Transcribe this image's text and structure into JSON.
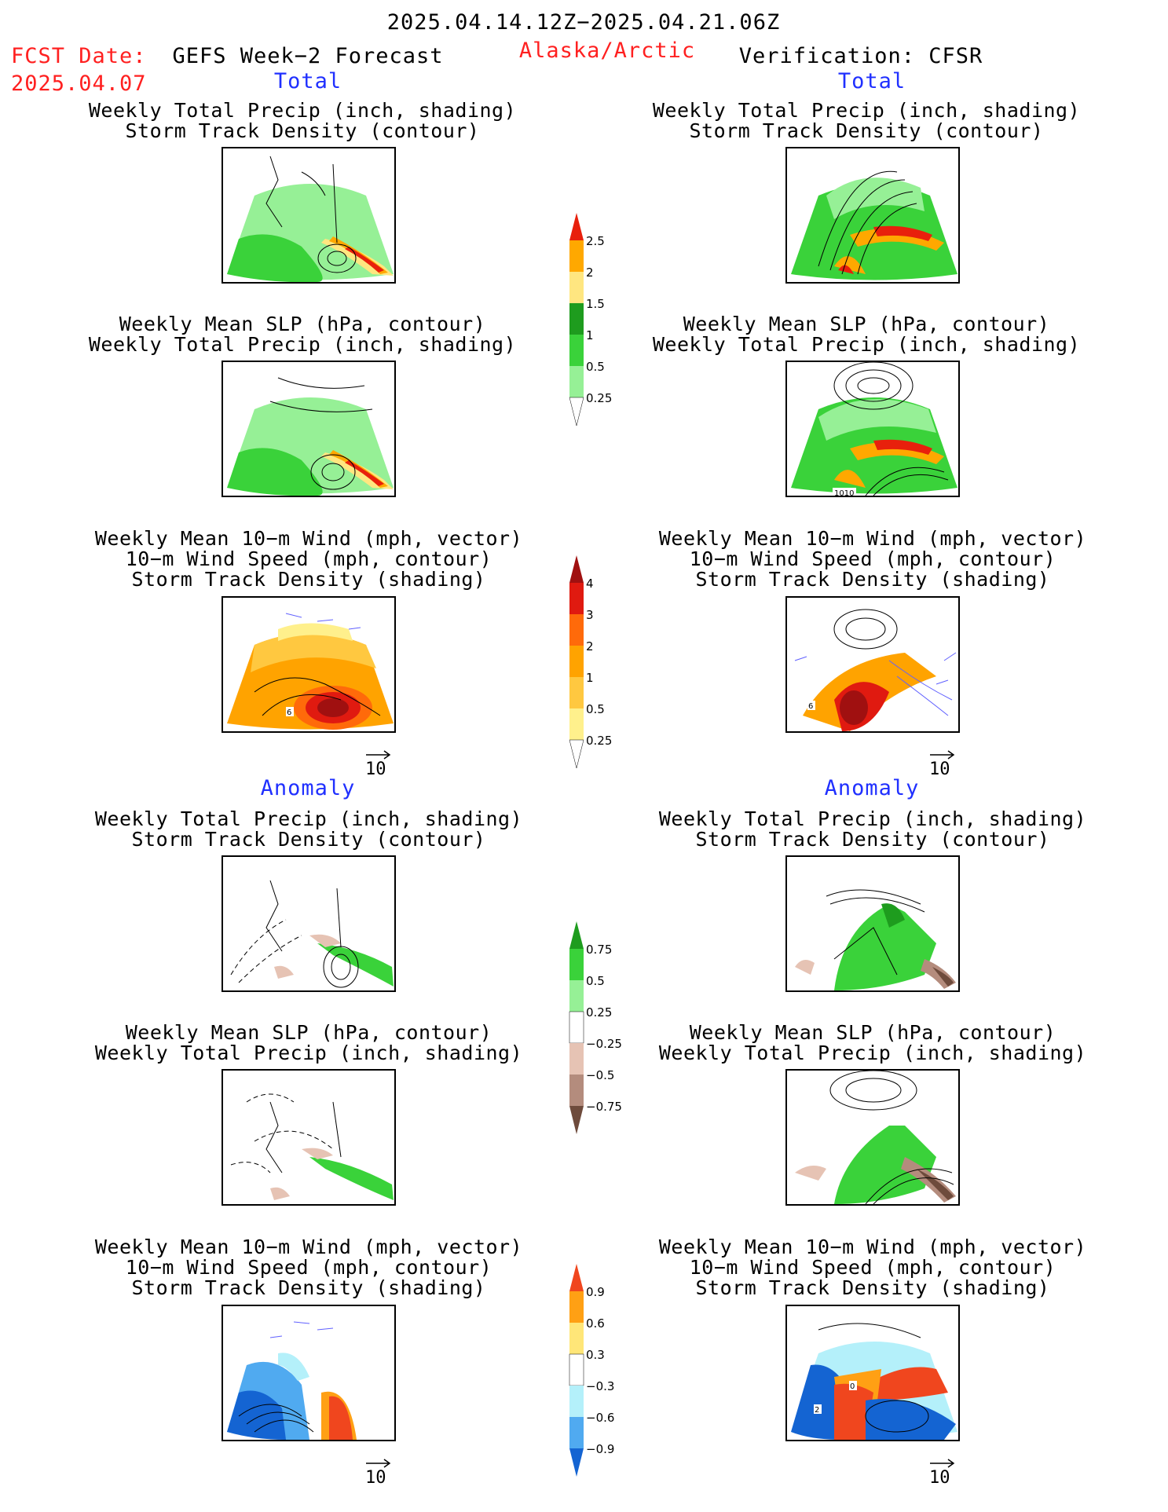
{
  "header": {
    "period": "2025.04.14.12Z−2025.04.21.06Z",
    "fcst_label": "FCST Date:",
    "fcst_date": "2025.04.07",
    "left_title": "GEFS Week−2 Forecast",
    "region": "Alaska/Arctic",
    "right_title": "Verification: CFSR"
  },
  "sections": {
    "total": "Total",
    "anomaly": "Anomaly"
  },
  "panel_titles": {
    "precip_storm": [
      "Weekly Total Precip (inch, shading)",
      "Storm Track Density (contour)"
    ],
    "slp_precip": [
      "Weekly Mean SLP (hPa, contour)",
      "Weekly Total Precip (inch, shading)"
    ],
    "wind_storm": [
      "Weekly Mean 10−m Wind (mph, vector)",
      "10−m Wind Speed (mph, contour)",
      "Storm Track Density (shading)"
    ]
  },
  "panel_labels": {
    "slp_contour_label": "1010",
    "wind_contour_left": "6",
    "wind_contour_right": "6",
    "anom_wind_right_a": "0",
    "anom_wind_right_b": "2"
  },
  "vector_ref": "10",
  "colorbars": {
    "total_precip": {
      "ticks": [
        "2.5",
        "2",
        "1.5",
        "1",
        "0.5",
        "0.25"
      ],
      "colors": [
        "#e8200c",
        "#ffa800",
        "#ffe680",
        "#1e9c1e",
        "#3ad23a",
        "#96f096",
        "#ffffff"
      ]
    },
    "total_storm": {
      "ticks": [
        "4",
        "3",
        "2",
        "1",
        "0.5",
        "0.25"
      ],
      "colors": [
        "#a01010",
        "#e01a10",
        "#ff6a0a",
        "#ffa300",
        "#ffc840",
        "#fff08c",
        "#ffffff"
      ]
    },
    "anom_precip": {
      "ticks": [
        "0.75",
        "0.5",
        "0.25",
        "−0.25",
        "−0.5",
        "−0.75"
      ],
      "colors": [
        "#1e9c1e",
        "#3ad23a",
        "#96f096",
        "#ffffff",
        "#e6c3b4",
        "#b48c7d",
        "#6e4b3c"
      ]
    },
    "anom_storm": {
      "ticks": [
        "0.9",
        "0.6",
        "0.3",
        "−0.3",
        "−0.6",
        "−0.9"
      ],
      "colors": [
        "#f0461e",
        "#ffa014",
        "#ffe678",
        "#ffffff",
        "#b4f0fa",
        "#50aaf0",
        "#1464d2"
      ]
    }
  }
}
